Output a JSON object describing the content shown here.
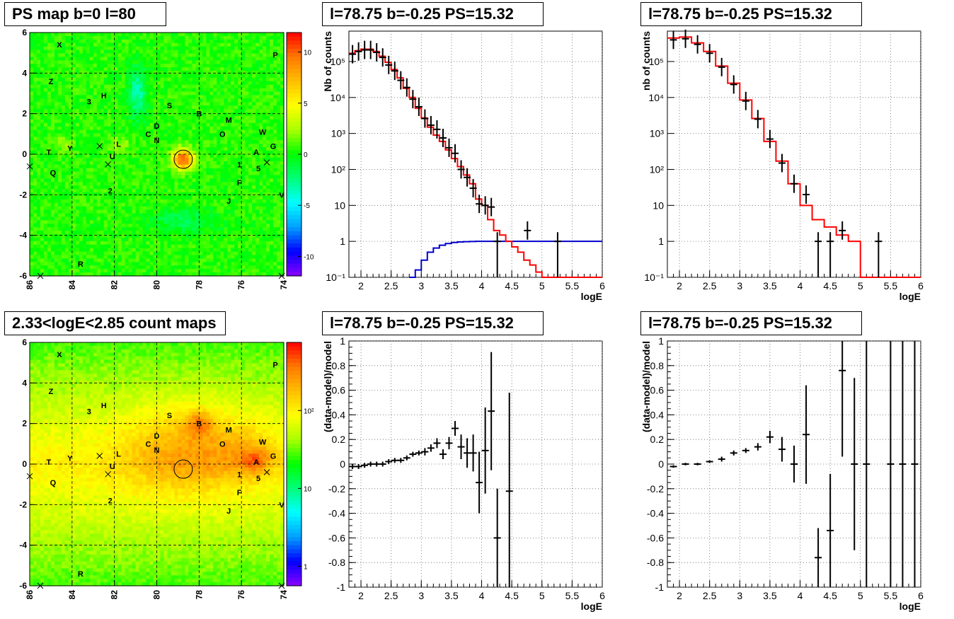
{
  "panels": {
    "map1_title": "PS map b=0 l=80",
    "map2_title": "2.33<logE<2.85 count maps",
    "spec1_title": "l=78.75 b=-0.25 PS=15.32",
    "spec2_title": "l=78.75 b=-0.25 PS=15.32",
    "res1_title": "l=78.75 b=-0.25 PS=15.32",
    "res2_title": "l=78.75 b=-0.25 PS=15.32"
  },
  "colors": {
    "data": "#000000",
    "model": "#ff0000",
    "background_model": "#0000cc",
    "grid": "#555555"
  },
  "chart_data": [
    {
      "type": "heatmap",
      "title": "PS map b=0 l=80",
      "x_ticks": [
        "86",
        "84",
        "82",
        "80",
        "78",
        "76",
        "74"
      ],
      "y_ticks": [
        "-6",
        "-4",
        "-2",
        "0",
        "2",
        "4",
        "6"
      ],
      "colorbar_ticks": [
        "10",
        "5",
        "0",
        "-5",
        "-10"
      ],
      "xlim": [
        86,
        74
      ],
      "ylim": [
        -6,
        6
      ],
      "source_labels": [
        {
          "t": "X",
          "l": 84.6,
          "b": 5.4
        },
        {
          "t": "P",
          "l": 74.4,
          "b": 4.9
        },
        {
          "t": "Z",
          "l": 85.0,
          "b": 3.6
        },
        {
          "t": "3",
          "l": 83.2,
          "b": 2.6
        },
        {
          "t": "H",
          "l": 82.5,
          "b": 2.9
        },
        {
          "t": "S",
          "l": 79.4,
          "b": 2.4
        },
        {
          "t": "B",
          "l": 78.0,
          "b": 2.0
        },
        {
          "t": "M",
          "l": 76.6,
          "b": 1.7
        },
        {
          "t": "D",
          "l": 80.0,
          "b": 1.4
        },
        {
          "t": "W",
          "l": 75.0,
          "b": 1.1
        },
        {
          "t": "C",
          "l": 80.4,
          "b": 1.0
        },
        {
          "t": "O",
          "l": 76.9,
          "b": 1.0
        },
        {
          "t": "N",
          "l": 80.0,
          "b": 0.7
        },
        {
          "t": "L",
          "l": 81.8,
          "b": 0.5
        },
        {
          "t": "G",
          "l": 74.5,
          "b": 0.4
        },
        {
          "t": "T",
          "l": 85.1,
          "b": 0.1
        },
        {
          "t": "Y",
          "l": 84.1,
          "b": 0.3
        },
        {
          "t": "U",
          "l": 82.1,
          "b": -0.1
        },
        {
          "t": "A",
          "l": 75.3,
          "b": 0.1
        },
        {
          "t": "1",
          "l": 76.1,
          "b": -0.5
        },
        {
          "t": "5",
          "l": 75.2,
          "b": -0.7
        },
        {
          "t": "Q",
          "l": 84.9,
          "b": -0.9
        },
        {
          "t": "F",
          "l": 76.1,
          "b": -1.4
        },
        {
          "t": "2",
          "l": 82.2,
          "b": -1.8
        },
        {
          "t": "V",
          "l": 74.1,
          "b": -2.0
        },
        {
          "t": "J",
          "l": 76.6,
          "b": -2.3
        },
        {
          "t": "R",
          "l": 83.6,
          "b": -5.4
        }
      ],
      "crosses": [
        [
          86.0,
          -0.6
        ],
        [
          82.7,
          0.4
        ],
        [
          82.3,
          -0.5
        ],
        [
          74.8,
          -0.4
        ],
        [
          85.5,
          -6.0
        ],
        [
          74.1,
          -6.0
        ]
      ],
      "circle": {
        "l": 78.75,
        "b": -0.25
      }
    },
    {
      "type": "heatmap",
      "title": "2.33<logE<2.85 count maps",
      "x_ticks": [
        "86",
        "84",
        "82",
        "80",
        "78",
        "76",
        "74"
      ],
      "y_ticks": [
        "-6",
        "-4",
        "-2",
        "0",
        "2",
        "4",
        "6"
      ],
      "colorbar_ticks": [
        "10²",
        "10",
        "1"
      ],
      "xlim": [
        86,
        74
      ],
      "ylim": [
        -6,
        6
      ]
    },
    {
      "type": "line",
      "title": "l=78.75 b=-0.25 PS=15.32",
      "xlabel": "logE",
      "ylabel": "Nb of counts",
      "xlim": [
        1.8,
        6
      ],
      "ylim": [
        0.1,
        700000
      ],
      "y_scale": "log",
      "x_ticks": [
        "2",
        "2.5",
        "3",
        "3.5",
        "4",
        "4.5",
        "5",
        "5.5",
        "6"
      ],
      "y_ticks": [
        "10⁻¹",
        "1",
        "10",
        "10²",
        "10³",
        "10⁴",
        "10⁵"
      ],
      "grid": true,
      "data_points": [
        {
          "x": 1.86,
          "y": 160000
        },
        {
          "x": 1.96,
          "y": 190000
        },
        {
          "x": 2.06,
          "y": 210000
        },
        {
          "x": 2.16,
          "y": 210000
        },
        {
          "x": 2.26,
          "y": 180000
        },
        {
          "x": 2.36,
          "y": 130000
        },
        {
          "x": 2.46,
          "y": 80000
        },
        {
          "x": 2.56,
          "y": 55000
        },
        {
          "x": 2.66,
          "y": 30000
        },
        {
          "x": 2.76,
          "y": 19000
        },
        {
          "x": 2.86,
          "y": 9000
        },
        {
          "x": 2.96,
          "y": 5500
        },
        {
          "x": 3.06,
          "y": 2600
        },
        {
          "x": 3.16,
          "y": 1700
        },
        {
          "x": 3.26,
          "y": 1300
        },
        {
          "x": 3.36,
          "y": 750
        },
        {
          "x": 3.46,
          "y": 400
        },
        {
          "x": 3.56,
          "y": 280
        },
        {
          "x": 3.66,
          "y": 100
        },
        {
          "x": 3.76,
          "y": 60
        },
        {
          "x": 3.86,
          "y": 30
        },
        {
          "x": 3.96,
          "y": 11
        },
        {
          "x": 4.06,
          "y": 10
        },
        {
          "x": 4.16,
          "y": 9
        },
        {
          "x": 4.26,
          "y": 1
        },
        {
          "x": 4.76,
          "y": 2
        },
        {
          "x": 5.26,
          "y": 1
        }
      ],
      "model_steps": [
        [
          1.8,
          170000
        ],
        [
          1.9,
          200000
        ],
        [
          2.0,
          220000
        ],
        [
          2.1,
          220000
        ],
        [
          2.2,
          190000
        ],
        [
          2.3,
          140000
        ],
        [
          2.4,
          95000
        ],
        [
          2.5,
          60000
        ],
        [
          2.6,
          35000
        ],
        [
          2.7,
          18000
        ],
        [
          2.8,
          10000
        ],
        [
          2.9,
          5000
        ],
        [
          3.0,
          2700
        ],
        [
          3.1,
          1500
        ],
        [
          3.2,
          900
        ],
        [
          3.3,
          600
        ],
        [
          3.4,
          350
        ],
        [
          3.5,
          200
        ],
        [
          3.6,
          120
        ],
        [
          3.7,
          70
        ],
        [
          3.8,
          40
        ],
        [
          3.9,
          15
        ],
        [
          4.0,
          10
        ],
        [
          4.1,
          4
        ],
        [
          4.2,
          2
        ],
        [
          4.3,
          1.5
        ],
        [
          4.4,
          1
        ],
        [
          4.5,
          0.7
        ],
        [
          4.6,
          0.5
        ],
        [
          4.7,
          0.3
        ],
        [
          4.8,
          0.22
        ],
        [
          4.9,
          0.14
        ],
        [
          5.0,
          0.1
        ]
      ],
      "background_steps": [
        [
          2.8,
          0.1
        ],
        [
          2.9,
          0.16
        ],
        [
          3.0,
          0.3
        ],
        [
          3.1,
          0.5
        ],
        [
          3.2,
          0.65
        ],
        [
          3.3,
          0.78
        ],
        [
          3.4,
          0.87
        ],
        [
          3.5,
          0.93
        ],
        [
          3.6,
          0.96
        ],
        [
          3.7,
          0.98
        ],
        [
          3.8,
          0.99
        ],
        [
          3.9,
          1.0
        ],
        [
          4.0,
          1.0
        ]
      ]
    },
    {
      "type": "line",
      "title": "l=78.75 b=-0.25 PS=15.32",
      "xlabel": "logE",
      "ylabel": "nb of counts",
      "xlim": [
        1.8,
        6
      ],
      "ylim": [
        0.1,
        700000
      ],
      "y_scale": "log",
      "x_ticks": [
        "2",
        "2.5",
        "3",
        "3.5",
        "4",
        "4.5",
        "5",
        "5.5",
        "6"
      ],
      "y_ticks": [
        "10⁻¹",
        "1",
        "10",
        "10²",
        "10³",
        "10⁴",
        "10⁵"
      ],
      "grid": true,
      "data_points": [
        {
          "x": 1.9,
          "y": 400000
        },
        {
          "x": 2.1,
          "y": 430000
        },
        {
          "x": 2.3,
          "y": 300000
        },
        {
          "x": 2.5,
          "y": 170000
        },
        {
          "x": 2.7,
          "y": 70000
        },
        {
          "x": 2.9,
          "y": 23000
        },
        {
          "x": 3.1,
          "y": 8000
        },
        {
          "x": 3.3,
          "y": 2500
        },
        {
          "x": 3.5,
          "y": 700
        },
        {
          "x": 3.7,
          "y": 150
        },
        {
          "x": 3.9,
          "y": 40
        },
        {
          "x": 4.1,
          "y": 20
        },
        {
          "x": 4.3,
          "y": 1
        },
        {
          "x": 4.5,
          "y": 1
        },
        {
          "x": 4.7,
          "y": 2
        },
        {
          "x": 5.3,
          "y": 1
        }
      ],
      "model_steps": [
        [
          1.8,
          450000
        ],
        [
          2.0,
          480000
        ],
        [
          2.2,
          330000
        ],
        [
          2.4,
          190000
        ],
        [
          2.6,
          75000
        ],
        [
          2.8,
          25000
        ],
        [
          3.0,
          8500
        ],
        [
          3.2,
          2600
        ],
        [
          3.4,
          600
        ],
        [
          3.6,
          170
        ],
        [
          3.8,
          40
        ],
        [
          4.0,
          10
        ],
        [
          4.2,
          4
        ],
        [
          4.4,
          2.5
        ],
        [
          4.6,
          1.5
        ],
        [
          4.8,
          1
        ],
        [
          5.0,
          0.1
        ]
      ]
    },
    {
      "type": "scatter",
      "title": "l=78.75 b=-0.25 PS=15.32",
      "xlabel": "logE",
      "ylabel": "(data-model)/model",
      "xlim": [
        1.8,
        6
      ],
      "ylim": [
        -1,
        1
      ],
      "x_ticks": [
        "2",
        "2.5",
        "3",
        "3.5",
        "4",
        "4.5",
        "5",
        "5.5",
        "6"
      ],
      "y_ticks": [
        "-1",
        "-0.8",
        "-0.6",
        "-0.4",
        "-0.2",
        "0",
        "0.2",
        "0.4",
        "0.6",
        "0.8",
        "1"
      ],
      "grid": true,
      "points": [
        {
          "x": 1.86,
          "y": -0.02,
          "e": 0.02
        },
        {
          "x": 1.96,
          "y": -0.02,
          "e": 0.02
        },
        {
          "x": 2.06,
          "y": -0.01,
          "e": 0.02
        },
        {
          "x": 2.16,
          "y": 0.0,
          "e": 0.02
        },
        {
          "x": 2.26,
          "y": 0.0,
          "e": 0.02
        },
        {
          "x": 2.36,
          "y": 0.0,
          "e": 0.02
        },
        {
          "x": 2.46,
          "y": 0.02,
          "e": 0.02
        },
        {
          "x": 2.56,
          "y": 0.03,
          "e": 0.02
        },
        {
          "x": 2.66,
          "y": 0.03,
          "e": 0.02
        },
        {
          "x": 2.76,
          "y": 0.05,
          "e": 0.02
        },
        {
          "x": 2.86,
          "y": 0.08,
          "e": 0.02
        },
        {
          "x": 2.96,
          "y": 0.09,
          "e": 0.02
        },
        {
          "x": 3.06,
          "y": 0.1,
          "e": 0.03
        },
        {
          "x": 3.16,
          "y": 0.13,
          "e": 0.03
        },
        {
          "x": 3.26,
          "y": 0.17,
          "e": 0.04
        },
        {
          "x": 3.36,
          "y": 0.08,
          "e": 0.04
        },
        {
          "x": 3.46,
          "y": 0.17,
          "e": 0.05
        },
        {
          "x": 3.56,
          "y": 0.29,
          "e": 0.06
        },
        {
          "x": 3.66,
          "y": 0.14,
          "e": 0.1
        },
        {
          "x": 3.76,
          "y": 0.09,
          "e": 0.12
        },
        {
          "x": 3.86,
          "y": 0.09,
          "e": 0.15
        },
        {
          "x": 3.96,
          "y": -0.15,
          "e": 0.25
        },
        {
          "x": 4.06,
          "y": 0.11,
          "e": 0.35
        },
        {
          "x": 4.16,
          "y": 0.43,
          "e": 0.48
        },
        {
          "x": 4.26,
          "y": -0.6,
          "e": 0.4
        },
        {
          "x": 4.46,
          "y": -0.22,
          "e": 0.8
        }
      ]
    },
    {
      "type": "scatter",
      "title": "l=78.75 b=-0.25 PS=15.32",
      "xlabel": "logE",
      "ylabel": "(data-model)/model",
      "xlim": [
        1.8,
        6
      ],
      "ylim": [
        -1,
        1
      ],
      "x_ticks": [
        "2",
        "2.5",
        "3",
        "3.5",
        "4",
        "4.5",
        "5",
        "5.5",
        "6"
      ],
      "y_ticks": [
        "-1",
        "-0.8",
        "-0.6",
        "-0.4",
        "-0.2",
        "0",
        "0.2",
        "0.4",
        "0.6",
        "0.8",
        "1"
      ],
      "grid": true,
      "points": [
        {
          "x": 1.9,
          "y": -0.02,
          "e": 0.01
        },
        {
          "x": 2.1,
          "y": 0.0,
          "e": 0.01
        },
        {
          "x": 2.3,
          "y": 0.0,
          "e": 0.01
        },
        {
          "x": 2.5,
          "y": 0.02,
          "e": 0.01
        },
        {
          "x": 2.7,
          "y": 0.04,
          "e": 0.02
        },
        {
          "x": 2.9,
          "y": 0.09,
          "e": 0.02
        },
        {
          "x": 3.1,
          "y": 0.11,
          "e": 0.02
        },
        {
          "x": 3.3,
          "y": 0.14,
          "e": 0.03
        },
        {
          "x": 3.5,
          "y": 0.22,
          "e": 0.05
        },
        {
          "x": 3.7,
          "y": 0.12,
          "e": 0.1
        },
        {
          "x": 3.9,
          "y": 0.0,
          "e": 0.15
        },
        {
          "x": 4.1,
          "y": 0.24,
          "e": 0.4
        },
        {
          "x": 4.3,
          "y": -0.76,
          "e": 0.24
        },
        {
          "x": 4.5,
          "y": -0.54,
          "e": 0.46
        },
        {
          "x": 4.7,
          "y": 0.76,
          "e": 0.7
        },
        {
          "x": 4.9,
          "y": 0.0,
          "e": 0.7
        },
        {
          "x": 5.1,
          "y": 0.0,
          "e": 1.0
        },
        {
          "x": 5.5,
          "y": 0.0,
          "e": 1.0
        },
        {
          "x": 5.7,
          "y": 0.0,
          "e": 1.0
        },
        {
          "x": 5.9,
          "y": 0.0,
          "e": 1.0
        }
      ]
    }
  ]
}
